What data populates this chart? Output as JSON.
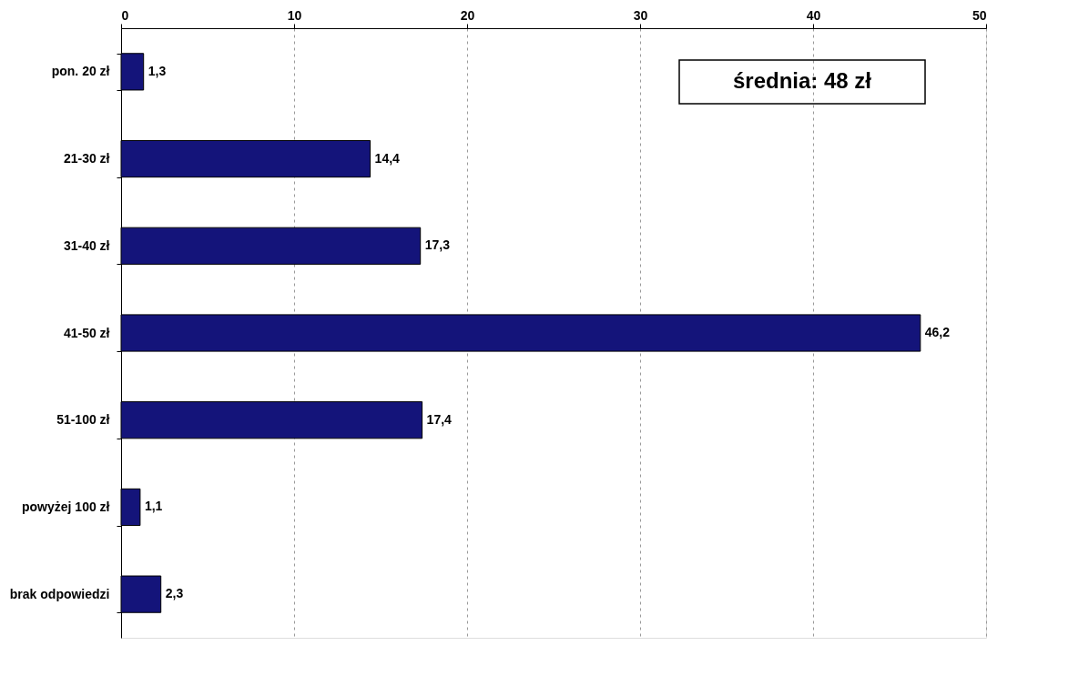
{
  "chart_data": {
    "type": "bar",
    "orientation": "horizontal",
    "categories": [
      "pon. 20 zł",
      "21-30 zł",
      "31-40 zł",
      "41-50 zł",
      "51-100 zł",
      "powyżej 100 zł",
      "brak odpowiedzi"
    ],
    "values": [
      1.3,
      14.4,
      17.3,
      46.2,
      17.4,
      1.1,
      2.3
    ],
    "value_labels": [
      "1,3",
      "14,4",
      "17,3",
      "46,2",
      "17,4",
      "1,1",
      "2,3"
    ],
    "color": "#14147a",
    "xlim": [
      0,
      50
    ],
    "xticks": [
      0,
      10,
      20,
      30,
      40,
      50
    ],
    "grid": "x",
    "annotations": [
      "średnia: 48 zł"
    ]
  }
}
